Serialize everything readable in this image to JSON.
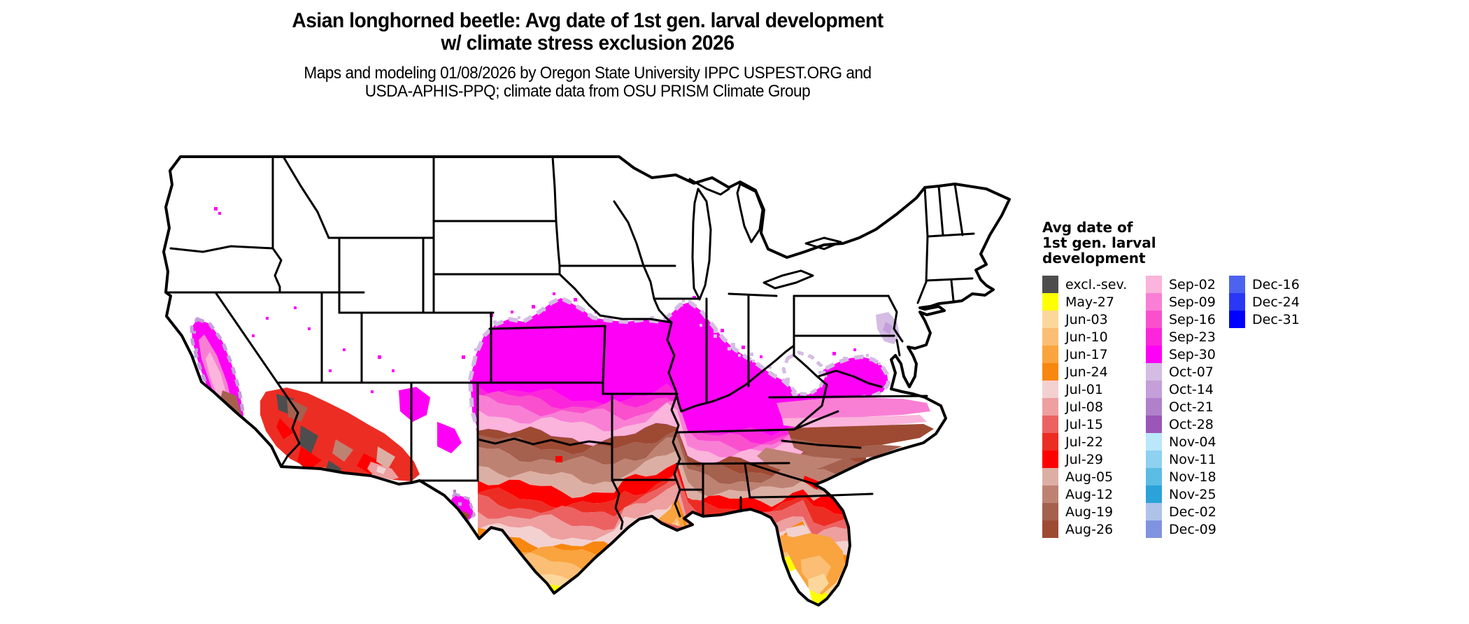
{
  "title": {
    "line1": "Asian longhorned beetle: Avg date of 1st gen. larval development",
    "line2": "w/ climate stress exclusion 2026"
  },
  "subtitle": {
    "line1": "Maps and modeling 01/08/2026 by Oregon State University IPPC USPEST.ORG and",
    "line2": "USDA-APHIS-PPQ; climate data from OSU PRISM Climate Group"
  },
  "legend": {
    "title_lines": [
      "Avg date of",
      "1st gen. larval",
      "development"
    ],
    "entries": [
      {
        "label": "excl.-sev.",
        "color": "#4D4D4D"
      },
      {
        "label": "May-27",
        "color": "#FFFF00"
      },
      {
        "label": "Jun-03",
        "color": "#FCD79B"
      },
      {
        "label": "Jun-10",
        "color": "#FBBE74"
      },
      {
        "label": "Jun-17",
        "color": "#FAA43F"
      },
      {
        "label": "Jun-24",
        "color": "#F8870F"
      },
      {
        "label": "Jul-01",
        "color": "#F3D1D1"
      },
      {
        "label": "Jul-08",
        "color": "#EE9F9F"
      },
      {
        "label": "Jul-15",
        "color": "#EC6262"
      },
      {
        "label": "Jul-22",
        "color": "#EC2D24"
      },
      {
        "label": "Jul-29",
        "color": "#FE0000"
      },
      {
        "label": "Aug-05",
        "color": "#DCAFA4"
      },
      {
        "label": "Aug-12",
        "color": "#BE8273"
      },
      {
        "label": "Aug-19",
        "color": "#A5604E"
      },
      {
        "label": "Aug-26",
        "color": "#9E4A33"
      },
      {
        "label": "Sep-02",
        "color": "#FBB4DB"
      },
      {
        "label": "Sep-09",
        "color": "#F97FD5"
      },
      {
        "label": "Sep-16",
        "color": "#FA50CE"
      },
      {
        "label": "Sep-23",
        "color": "#FB26DC"
      },
      {
        "label": "Sep-30",
        "color": "#FF00F6"
      },
      {
        "label": "Oct-07",
        "color": "#D4BCE3"
      },
      {
        "label": "Oct-14",
        "color": "#C49FD9"
      },
      {
        "label": "Oct-21",
        "color": "#B180CB"
      },
      {
        "label": "Oct-28",
        "color": "#9A56B8"
      },
      {
        "label": "Nov-04",
        "color": "#BBE7FA"
      },
      {
        "label": "Nov-11",
        "color": "#8ED1F0"
      },
      {
        "label": "Nov-18",
        "color": "#5BBCE4"
      },
      {
        "label": "Nov-25",
        "color": "#2BA2D9"
      },
      {
        "label": "Dec-02",
        "color": "#AFC3E8"
      },
      {
        "label": "Dec-09",
        "color": "#8093E0"
      },
      {
        "label": "Dec-16",
        "color": "#4C63F0"
      },
      {
        "label": "Dec-24",
        "color": "#2838F5"
      },
      {
        "label": "Dec-31",
        "color": "#0000FF"
      }
    ]
  },
  "map": {
    "background_color": "#FFFFFF",
    "state_border_color": "#000000"
  }
}
